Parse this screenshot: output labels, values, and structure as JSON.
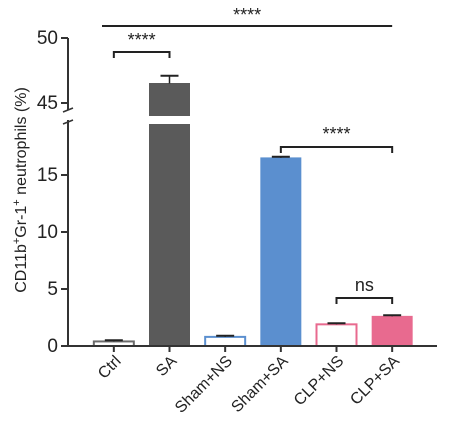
{
  "chart_data": {
    "type": "bar",
    "ylabel": "CD11b⁺Gr-1⁺ neutrophils (%)",
    "ylabel_parts": [
      "CD11b",
      "+",
      "Gr-1",
      "+",
      " neutrophils (%)"
    ],
    "categories": [
      "Ctrl",
      "SA",
      "Sham+NS",
      "Sham+SA",
      "CLP+NS",
      "CLP+SA"
    ],
    "values": [
      0.4,
      46.5,
      0.8,
      16.5,
      1.9,
      2.6
    ],
    "errors": [
      0.1,
      0.6,
      0.1,
      0.1,
      0.1,
      0.1
    ],
    "styles": [
      "open",
      "filled",
      "open",
      "filled",
      "open",
      "filled"
    ],
    "colors": [
      "#6b6b6b",
      "#5a5a5a",
      "#5b8fcf",
      "#5b8fcf",
      "#e86a8f",
      "#e86a8f"
    ],
    "y_axis_broken": true,
    "ylim_lower": [
      0,
      20
    ],
    "ylim_upper": [
      44,
      50
    ],
    "yticks_lower": [
      "0",
      "5",
      "10",
      "15"
    ],
    "yticks_upper": [
      "45",
      "50"
    ],
    "significance": [
      {
        "from": "Ctrl",
        "to": "CLP+SA",
        "label": "****"
      },
      {
        "from": "Ctrl",
        "to": "SA",
        "label": "****"
      },
      {
        "from": "Sham+SA",
        "to": "CLP+SA",
        "label": "****"
      },
      {
        "from": "CLP+NS",
        "to": "CLP+SA",
        "label": "ns"
      }
    ]
  }
}
